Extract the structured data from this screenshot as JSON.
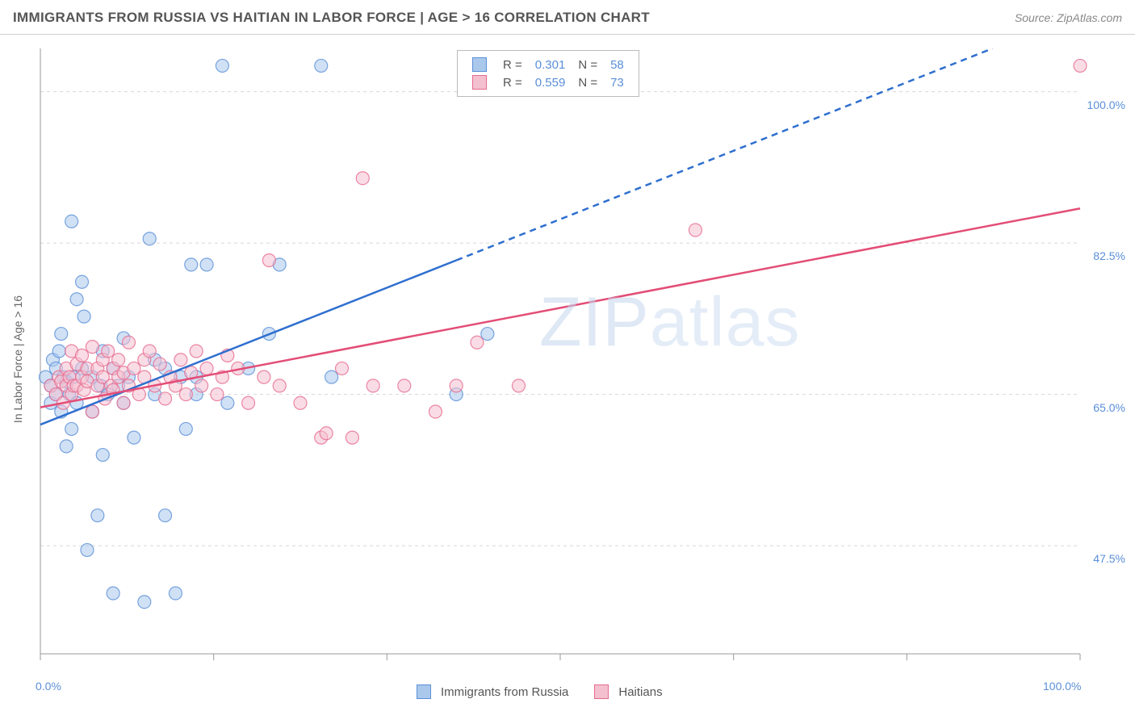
{
  "title": "IMMIGRANTS FROM RUSSIA VS HAITIAN IN LABOR FORCE | AGE > 16 CORRELATION CHART",
  "source": "Source: ZipAtlas.com",
  "y_axis_label": "In Labor Force | Age > 16",
  "watermark": {
    "part1": "ZIP",
    "part2": "atlas"
  },
  "chart": {
    "type": "scatter",
    "xlim": [
      0,
      100
    ],
    "ylim": [
      35,
      105
    ],
    "y_gridlines": [
      47.5,
      65.0,
      82.5,
      100.0
    ],
    "y_grid_labels": [
      "47.5%",
      "65.0%",
      "82.5%",
      "100.0%"
    ],
    "y_grid_label_first": "100.0%",
    "x_ticks": [
      0,
      16.67,
      33.33,
      50,
      66.67,
      83.33,
      100
    ],
    "x_tick_labels_visible": {
      "0": "0.0%",
      "100": "100.0%"
    },
    "grid_color": "#d8d8d8",
    "axis_color": "#bbbbbb",
    "background_color": "#ffffff",
    "marker_radius": 8,
    "marker_opacity": 0.55,
    "line_width": 2.5
  },
  "series": [
    {
      "name": "Immigrants from Russia",
      "color_fill": "#a9c8ec",
      "color_stroke": "#5a8fd8",
      "line_color": "#2f6fcf",
      "r": "0.301",
      "n": "58",
      "trend": {
        "x1": 0,
        "y1": 61.5,
        "x2": 40,
        "y2": 80.5,
        "dash_x2": 100,
        "dash_y2": 109
      },
      "points": [
        [
          0.5,
          67
        ],
        [
          1,
          64
        ],
        [
          1,
          66
        ],
        [
          1.2,
          69
        ],
        [
          1.5,
          65
        ],
        [
          1.5,
          68
        ],
        [
          1.8,
          70
        ],
        [
          2,
          63
        ],
        [
          2,
          72
        ],
        [
          2.2,
          67
        ],
        [
          2.5,
          59
        ],
        [
          2.5,
          66.5
        ],
        [
          2.8,
          65
        ],
        [
          3,
          85
        ],
        [
          3,
          61
        ],
        [
          3.2,
          67
        ],
        [
          3.5,
          76
        ],
        [
          3.5,
          64
        ],
        [
          4,
          68
        ],
        [
          4,
          78
        ],
        [
          4.2,
          74
        ],
        [
          4.5,
          47
        ],
        [
          5,
          63
        ],
        [
          5,
          67
        ],
        [
          5.5,
          51
        ],
        [
          5.8,
          66
        ],
        [
          6,
          70
        ],
        [
          6,
          58
        ],
        [
          6.5,
          65
        ],
        [
          7,
          68
        ],
        [
          7,
          42
        ],
        [
          7.5,
          66
        ],
        [
          8,
          64
        ],
        [
          8,
          71.5
        ],
        [
          8.5,
          67
        ],
        [
          9,
          60
        ],
        [
          10,
          41
        ],
        [
          10.5,
          83
        ],
        [
          11,
          65
        ],
        [
          11,
          69
        ],
        [
          12,
          51
        ],
        [
          12,
          68
        ],
        [
          13,
          42
        ],
        [
          13.5,
          67
        ],
        [
          14,
          61
        ],
        [
          14.5,
          80
        ],
        [
          15,
          65
        ],
        [
          15,
          67
        ],
        [
          16,
          80
        ],
        [
          17.5,
          103
        ],
        [
          18,
          64
        ],
        [
          20,
          68
        ],
        [
          22,
          72
        ],
        [
          23,
          80
        ],
        [
          27,
          103
        ],
        [
          28,
          67
        ],
        [
          40,
          65
        ],
        [
          43,
          72
        ]
      ]
    },
    {
      "name": "Haitians",
      "color_fill": "#f4c0cf",
      "color_stroke": "#e66a8e",
      "line_color": "#e34d76",
      "r": "0.559",
      "n": "73",
      "trend": {
        "x1": 0,
        "y1": 63.5,
        "x2": 100,
        "y2": 86.5
      },
      "points": [
        [
          1,
          66
        ],
        [
          1.5,
          65
        ],
        [
          1.8,
          67
        ],
        [
          2,
          66.5
        ],
        [
          2.2,
          64
        ],
        [
          2.5,
          68
        ],
        [
          2.5,
          66
        ],
        [
          2.8,
          67
        ],
        [
          3,
          70
        ],
        [
          3,
          65
        ],
        [
          3.2,
          66
        ],
        [
          3.5,
          68.5
        ],
        [
          3.5,
          66
        ],
        [
          4,
          67
        ],
        [
          4,
          69.5
        ],
        [
          4.2,
          65.5
        ],
        [
          4.5,
          68
        ],
        [
          4.5,
          66.5
        ],
        [
          5,
          63
        ],
        [
          5,
          70.5
        ],
        [
          5.5,
          68
        ],
        [
          5.5,
          66
        ],
        [
          6,
          69
        ],
        [
          6,
          67
        ],
        [
          6.2,
          64.5
        ],
        [
          6.5,
          70
        ],
        [
          6.8,
          66
        ],
        [
          7,
          68
        ],
        [
          7,
          65.5
        ],
        [
          7.5,
          67
        ],
        [
          7.5,
          69
        ],
        [
          8,
          64
        ],
        [
          8,
          67.5
        ],
        [
          8.5,
          66
        ],
        [
          8.5,
          71
        ],
        [
          9,
          68
        ],
        [
          9.5,
          65
        ],
        [
          10,
          69
        ],
        [
          10,
          67
        ],
        [
          10.5,
          70
        ],
        [
          11,
          66
        ],
        [
          11.5,
          68.5
        ],
        [
          12,
          64.5
        ],
        [
          12.5,
          67
        ],
        [
          13,
          66
        ],
        [
          13.5,
          69
        ],
        [
          14,
          65
        ],
        [
          14.5,
          67.5
        ],
        [
          15,
          70
        ],
        [
          15.5,
          66
        ],
        [
          16,
          68
        ],
        [
          17,
          65
        ],
        [
          17.5,
          67
        ],
        [
          18,
          69.5
        ],
        [
          19,
          68
        ],
        [
          20,
          64
        ],
        [
          21.5,
          67
        ],
        [
          22,
          80.5
        ],
        [
          23,
          66
        ],
        [
          25,
          64
        ],
        [
          27,
          60
        ],
        [
          27.5,
          60.5
        ],
        [
          29,
          68
        ],
        [
          30,
          60
        ],
        [
          31,
          90
        ],
        [
          32,
          66
        ],
        [
          35,
          66
        ],
        [
          38,
          63
        ],
        [
          40,
          66
        ],
        [
          42,
          71
        ],
        [
          46,
          66
        ],
        [
          63,
          84
        ],
        [
          100,
          103
        ]
      ]
    }
  ],
  "legend_bottom": [
    {
      "label": "Immigrants from Russia",
      "series": 0
    },
    {
      "label": "Haitians",
      "series": 1
    }
  ]
}
